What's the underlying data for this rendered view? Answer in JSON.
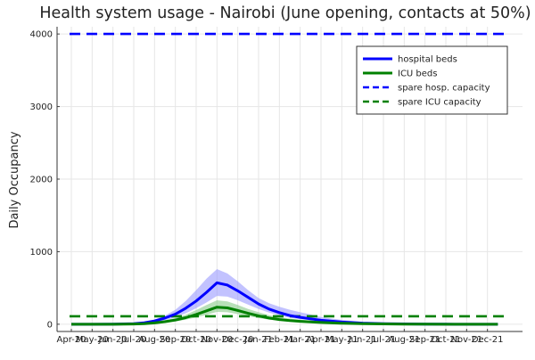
{
  "chart_data": {
    "type": "line",
    "title": "Health system usage - Nairobi (June opening, contacts at 50%)",
    "xlabel": "",
    "ylabel": "Daily Occupancy",
    "grid": true,
    "legend_position": "top-right",
    "x_ticks": [
      "Apr-20",
      "May-20",
      "Jun-20",
      "Jul-20",
      "Aug-20",
      "Sep-20",
      "Oct-20",
      "Nov-20",
      "Dec-20",
      "Jan-21",
      "Feb-21",
      "Mar-21",
      "Apr-21",
      "May-21",
      "Jun-21",
      "Jul-21",
      "Aug-21",
      "Sep-21",
      "Oct-21",
      "Nov-21",
      "Dec-21"
    ],
    "x_range": [
      0,
      21
    ],
    "y_ticks": [
      0,
      1000,
      2000,
      3000,
      4000
    ],
    "y_range": [
      -100,
      4100
    ],
    "series": [
      {
        "name": "hospital beds",
        "style": "solid",
        "color": "#0000ff",
        "band_color": "#9999ff",
        "x": [
          0,
          1,
          2,
          3,
          3.5,
          4,
          4.5,
          5,
          5.5,
          6,
          6.5,
          7,
          7.5,
          8,
          8.5,
          9,
          9.5,
          10,
          10.5,
          11,
          11.5,
          12,
          13,
          14,
          15,
          16,
          17,
          18,
          19,
          20,
          20.5
        ],
        "values": [
          0,
          0,
          1,
          8,
          20,
          45,
          85,
          140,
          220,
          320,
          440,
          570,
          540,
          460,
          370,
          280,
          210,
          160,
          120,
          95,
          75,
          55,
          30,
          15,
          8,
          4,
          2,
          1,
          0,
          0,
          0
        ],
        "lower": [
          0,
          0,
          1,
          5,
          12,
          28,
          55,
          95,
          150,
          220,
          300,
          390,
          380,
          330,
          270,
          210,
          160,
          120,
          90,
          70,
          55,
          40,
          20,
          10,
          5,
          2,
          1,
          0,
          0,
          0,
          0
        ],
        "upper": [
          0,
          0,
          2,
          12,
          30,
          65,
          120,
          200,
          320,
          470,
          630,
          760,
          700,
          590,
          470,
          360,
          290,
          240,
          200,
          165,
          135,
          100,
          60,
          30,
          15,
          8,
          4,
          2,
          1,
          0,
          0
        ]
      },
      {
        "name": "ICU beds",
        "style": "solid",
        "color": "#008000",
        "band_color": "#88cc88",
        "x": [
          0,
          1,
          2,
          3,
          3.5,
          4,
          4.5,
          5,
          5.5,
          6,
          6.5,
          7,
          7.5,
          8,
          8.5,
          9,
          9.5,
          10,
          10.5,
          11,
          11.5,
          12,
          13,
          14,
          15,
          16,
          17,
          18,
          19,
          20,
          20.5
        ],
        "values": [
          0,
          0,
          0,
          3,
          8,
          18,
          35,
          58,
          90,
          135,
          185,
          235,
          225,
          190,
          150,
          115,
          85,
          65,
          50,
          40,
          32,
          24,
          13,
          7,
          4,
          2,
          1,
          0,
          0,
          0,
          0
        ],
        "lower": [
          0,
          0,
          0,
          2,
          5,
          12,
          24,
          40,
          62,
          95,
          130,
          170,
          165,
          140,
          110,
          85,
          63,
          48,
          37,
          29,
          23,
          17,
          9,
          5,
          3,
          1,
          0,
          0,
          0,
          0,
          0
        ],
        "upper": [
          0,
          0,
          1,
          5,
          12,
          28,
          55,
          85,
          130,
          195,
          265,
          330,
          315,
          265,
          210,
          165,
          125,
          98,
          78,
          63,
          50,
          38,
          22,
          12,
          6,
          3,
          2,
          1,
          0,
          0,
          0
        ]
      },
      {
        "name": "spare hosp. capacity",
        "style": "dashed",
        "color": "#0000ff",
        "x": [
          0,
          21
        ],
        "values": [
          4000,
          4000
        ]
      },
      {
        "name": "spare ICU capacity",
        "style": "dashed",
        "color": "#008000",
        "x": [
          0,
          21
        ],
        "values": [
          110,
          110
        ]
      }
    ]
  }
}
